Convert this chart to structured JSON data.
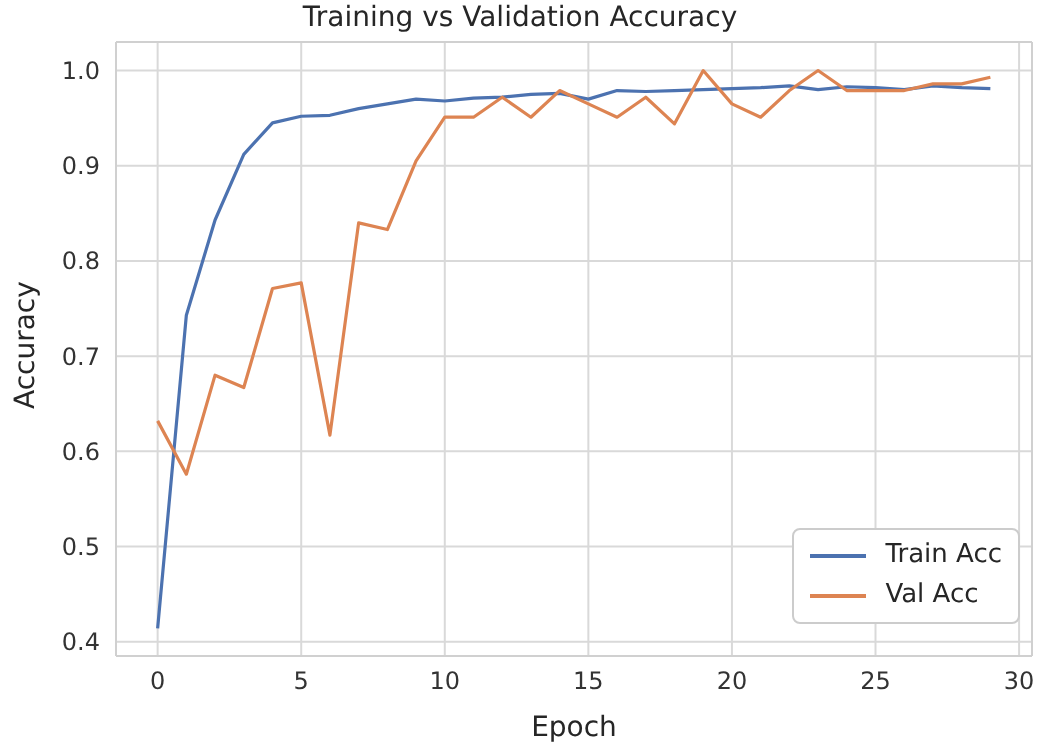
{
  "chart_data": {
    "type": "line",
    "title": "Training vs Validation Accuracy",
    "xlabel": "Epoch",
    "ylabel": "Accuracy",
    "x": [
      0,
      1,
      2,
      3,
      4,
      5,
      6,
      7,
      8,
      9,
      10,
      11,
      12,
      13,
      14,
      15,
      16,
      17,
      18,
      19,
      20,
      21,
      22,
      23,
      24,
      25,
      26,
      27,
      28,
      29
    ],
    "series": [
      {
        "name": "Train Acc",
        "color": "#4c72b0",
        "values": [
          0.414,
          0.743,
          0.843,
          0.912,
          0.945,
          0.952,
          0.953,
          0.96,
          0.965,
          0.97,
          0.968,
          0.971,
          0.972,
          0.975,
          0.976,
          0.97,
          0.979,
          0.978,
          0.979,
          0.98,
          0.981,
          0.982,
          0.984,
          0.98,
          0.983,
          0.982,
          0.98,
          0.984,
          0.982,
          0.981
        ]
      },
      {
        "name": "Val Acc",
        "color": "#dd8452",
        "values": [
          0.632,
          0.576,
          0.68,
          0.667,
          0.771,
          0.777,
          0.617,
          0.84,
          0.833,
          0.905,
          0.951,
          0.951,
          0.972,
          0.951,
          0.979,
          0.965,
          0.951,
          0.972,
          0.944,
          1.0,
          0.965,
          0.951,
          0.979,
          1.0,
          0.979,
          0.979,
          0.979,
          0.986,
          0.986,
          0.993
        ]
      }
    ],
    "xlim": [
      -1.45,
      30.45
    ],
    "xticks": [
      0,
      5,
      10,
      15,
      20,
      25,
      30
    ],
    "ylim": [
      0.385,
      1.03
    ],
    "yticks": [
      {
        "value": 0.4,
        "label": "0.4"
      },
      {
        "value": 0.5,
        "label": "0.5"
      },
      {
        "value": 0.6,
        "label": "0.6"
      },
      {
        "value": 0.7,
        "label": "0.7"
      },
      {
        "value": 0.8,
        "label": "0.8"
      },
      {
        "value": 0.9,
        "label": "0.9"
      },
      {
        "value": 1.0,
        "label": "1.0"
      }
    ],
    "grid": true,
    "legend": "bottom right",
    "marker": "none",
    "line_style": "solid"
  }
}
